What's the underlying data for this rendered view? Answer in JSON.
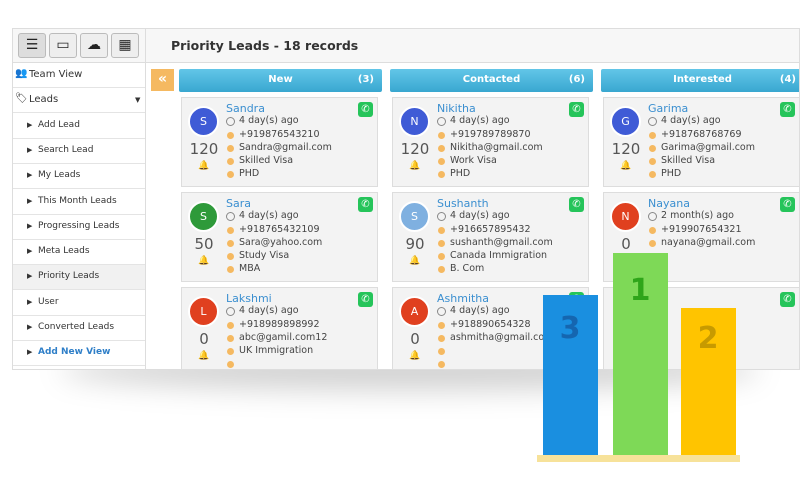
{
  "toolbar": {
    "title": "Priority Leads - 18 records"
  },
  "sidebar": {
    "items": [
      "Team View",
      "Leads",
      "Add Lead",
      "Search Lead",
      "My Leads",
      "This Month Leads",
      "Progressing Leads",
      "Meta Leads",
      "Priority Leads",
      "User",
      "Converted Leads",
      "Add New View"
    ]
  },
  "columns": [
    {
      "name": "New",
      "count": "(3)",
      "cards": [
        {
          "name": "Sandra",
          "initial": "S",
          "avatar_color": "#3f5bd6",
          "score": 120,
          "time": "4 day(s) ago",
          "details": [
            "+919876543210",
            "Sandra@gmail.com",
            "Skilled Visa",
            "PHD"
          ]
        },
        {
          "name": "Sara",
          "initial": "S",
          "avatar_color": "#2e9a3a",
          "score": 50,
          "time": "4 day(s) ago",
          "details": [
            "+918765432109",
            "Sara@yahoo.com",
            "Study Visa",
            "MBA"
          ]
        },
        {
          "name": "Lakshmi",
          "initial": "L",
          "avatar_color": "#e0401f",
          "score": 0,
          "time": "4 day(s) ago",
          "details": [
            "+918989898992",
            "abc@gamil.com12",
            "UK Immigration"
          ]
        }
      ]
    },
    {
      "name": "Contacted",
      "count": "(6)",
      "cards": [
        {
          "name": "Nikitha",
          "initial": "N",
          "avatar_color": "#3f5bd6",
          "score": 120,
          "time": "4 day(s) ago",
          "details": [
            "+919789789870",
            "Nikitha@gmail.com",
            "Work Visa",
            "PHD"
          ]
        },
        {
          "name": "Sushanth",
          "initial": "S",
          "avatar_color": "#7fb0e0",
          "score": 90,
          "time": "4 day(s) ago",
          "details": [
            "+916657895432",
            "sushanth@gmail.com",
            "Canada Immigration",
            "B. Com"
          ]
        },
        {
          "name": "Ashmitha",
          "initial": "A",
          "avatar_color": "#e0401f",
          "score": 0,
          "time": "4 day(s) ago",
          "details": [
            "+918890654328",
            "ashmitha@gmail.com"
          ]
        }
      ]
    },
    {
      "name": "Interested",
      "count": "(4)",
      "cards": [
        {
          "name": "Garima",
          "initial": "G",
          "avatar_color": "#3f5bd6",
          "score": 120,
          "time": "4 day(s) ago",
          "details": [
            "+918768768769",
            "Garima@gmail.com",
            "Skilled Visa",
            "PHD"
          ]
        },
        {
          "name": "Nayana",
          "initial": "N",
          "avatar_color": "#e0401f",
          "score": 0,
          "time": "2 month(s) ago",
          "details": [
            "+919907654321",
            "nayana@gmail.com"
          ]
        },
        {}
      ]
    }
  ],
  "podium": [
    "3",
    "1",
    "2"
  ]
}
